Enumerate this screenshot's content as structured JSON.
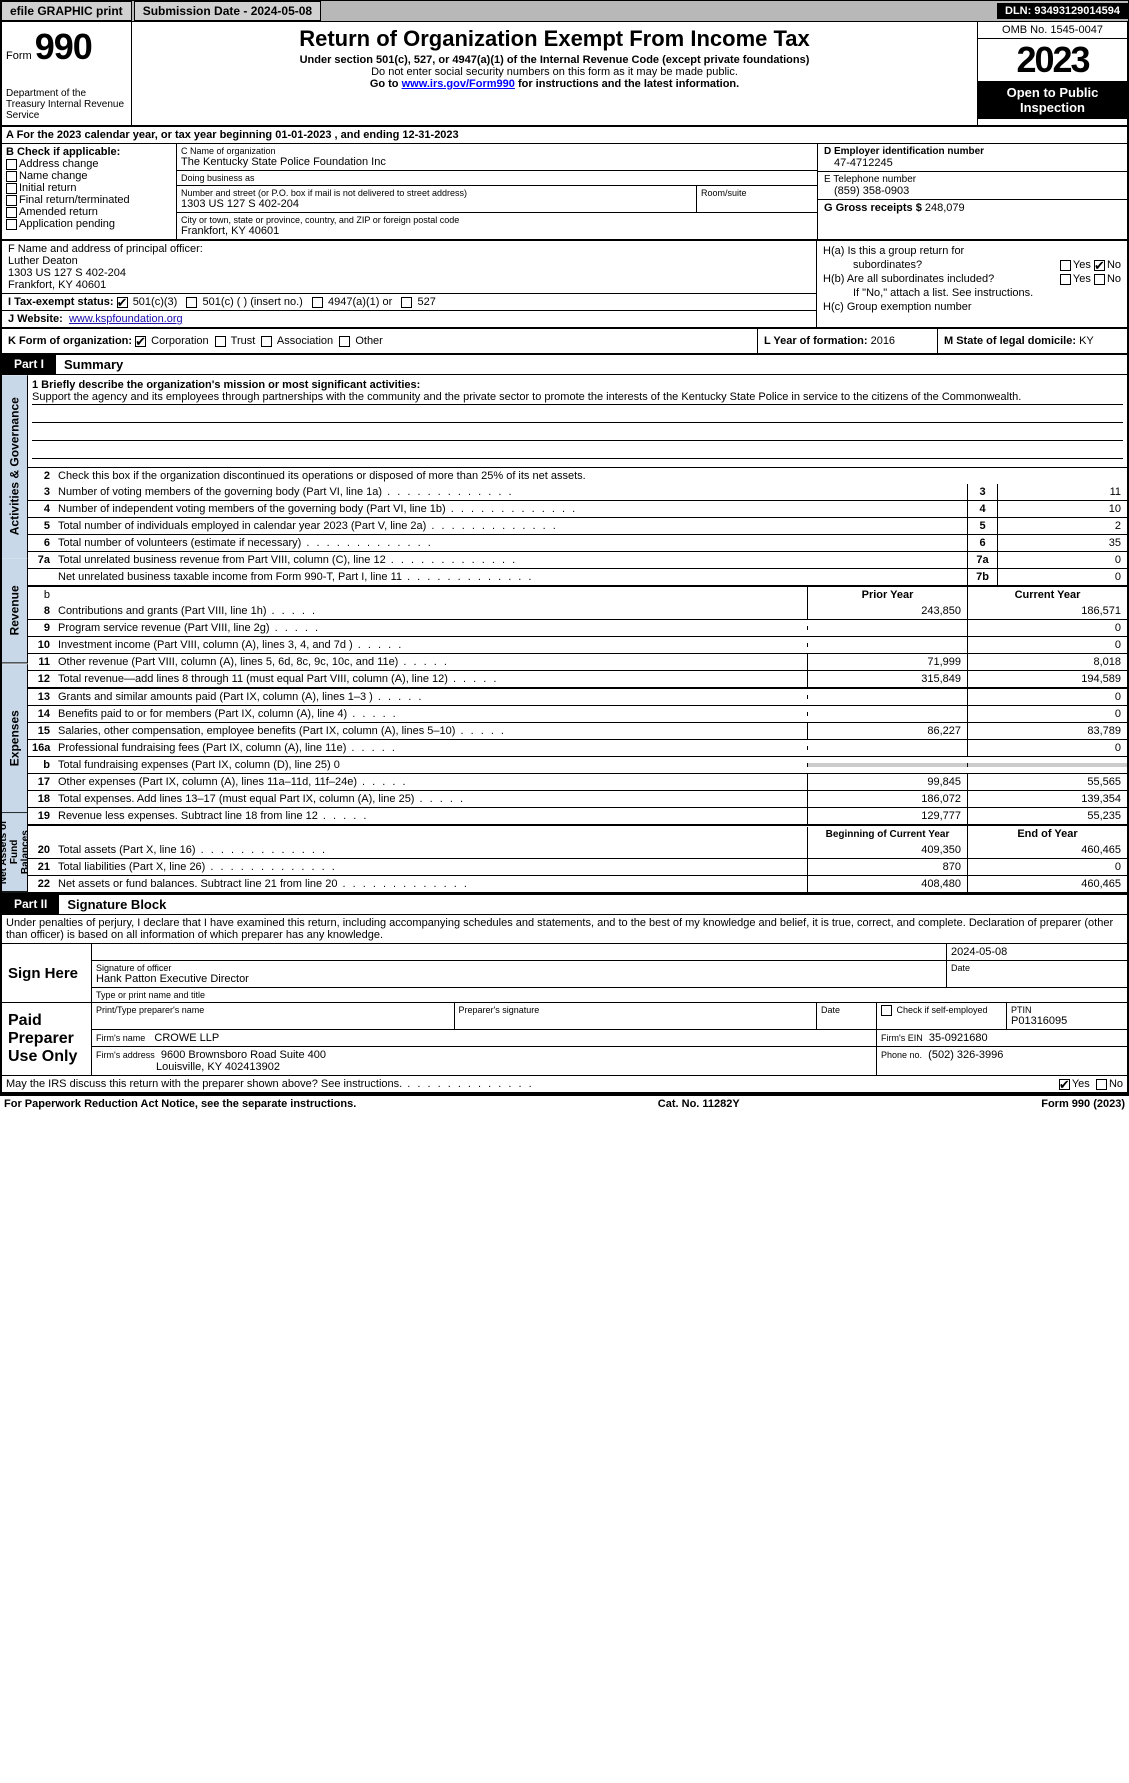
{
  "topbar": {
    "efile": "efile GRAPHIC print",
    "submission_label": "Submission Date - 2024-05-08",
    "dln": "DLN: 93493129014594"
  },
  "header": {
    "form_label": "Form",
    "form_number": "990",
    "title": "Return of Organization Exempt From Income Tax",
    "subtitle": "Under section 501(c), 527, or 4947(a)(1) of the Internal Revenue Code (except private foundations)",
    "note1": "Do not enter social security numbers on this form as it may be made public.",
    "note2_pre": "Go to ",
    "note2_link": "www.irs.gov/Form990",
    "note2_post": " for instructions and the latest information.",
    "dept": "Department of the Treasury\nInternal Revenue Service",
    "omb": "OMB No. 1545-0047",
    "year": "2023",
    "pubinspect": "Open to Public Inspection"
  },
  "row_a": {
    "text_pre": "A For the 2023 calendar year, or tax year beginning ",
    "begin": "01-01-2023",
    "mid": " , and ending ",
    "end": "12-31-2023"
  },
  "block_b": {
    "label": "B Check if applicable:",
    "items": [
      "Address change",
      "Name change",
      "Initial return",
      "Final return/terminated",
      "Amended return",
      "Application pending"
    ]
  },
  "block_c": {
    "name_label": "C Name of organization",
    "name": "The Kentucky State Police Foundation Inc",
    "dba_label": "Doing business as",
    "dba": "",
    "street_label": "Number and street (or P.O. box if mail is not delivered to street address)",
    "street": "1303 US 127 S 402-204",
    "room_label": "Room/suite",
    "room": "",
    "city_label": "City or town, state or province, country, and ZIP or foreign postal code",
    "city": "Frankfort, KY  40601"
  },
  "block_de": {
    "d_label": "D Employer identification number",
    "d_value": "47-4712245",
    "e_label": "E Telephone number",
    "e_value": "(859) 358-0903",
    "g_label": "G Gross receipts $",
    "g_value": "248,079"
  },
  "block_f": {
    "label": "F Name and address of principal officer:",
    "name": "Luther Deaton",
    "street": "1303 US 127 S 402-204",
    "city": "Frankfort, KY  40601"
  },
  "block_i": {
    "label": "I   Tax-exempt status:",
    "opts": [
      "501(c)(3)",
      "501(c) (  ) (insert no.)",
      "4947(a)(1) or",
      "527"
    ],
    "checked": 0
  },
  "block_j": {
    "label": "J   Website:",
    "value": "www.kspfoundation.org"
  },
  "block_h": {
    "a": "H(a)  Is this a group return for",
    "a2": "subordinates?",
    "b": "H(b)  Are all subordinates included?",
    "b_note": "If \"No,\" attach a list. See instructions.",
    "c": "H(c)  Group exemption number ",
    "yes": "Yes",
    "no": "No"
  },
  "row_k": {
    "label": "K Form of organization:",
    "opts": [
      "Corporation",
      "Trust",
      "Association",
      "Other"
    ],
    "checked": 0,
    "l_label": "L Year of formation:",
    "l_value": "2016",
    "m_label": "M State of legal domicile:",
    "m_value": "KY"
  },
  "parts": {
    "p1_tab": "Part I",
    "p1_title": "Summary",
    "p2_tab": "Part II",
    "p2_title": "Signature Block"
  },
  "summary": {
    "vtabs": [
      "Activities & Governance",
      "Revenue",
      "Expenses",
      "Net Assets or Fund Balances"
    ],
    "mission_label": "1   Briefly describe the organization's mission or most significant activities:",
    "mission_text": "Support the agency and its employees through partnerships with the community and the private sector to promote the interests of the Kentucky State Police in service to the citizens of the Commonwealth.",
    "line2": "Check this box      if the organization discontinued its operations or disposed of more than 25% of its net assets.",
    "gov": [
      {
        "n": "3",
        "d": "Number of voting members of the governing body (Part VI, line 1a)",
        "b": "3",
        "v": "11"
      },
      {
        "n": "4",
        "d": "Number of independent voting members of the governing body (Part VI, line 1b)",
        "b": "4",
        "v": "10"
      },
      {
        "n": "5",
        "d": "Total number of individuals employed in calendar year 2023 (Part V, line 2a)",
        "b": "5",
        "v": "2"
      },
      {
        "n": "6",
        "d": "Total number of volunteers (estimate if necessary)",
        "b": "6",
        "v": "35"
      },
      {
        "n": "7a",
        "d": "Total unrelated business revenue from Part VIII, column (C), line 12",
        "b": "7a",
        "v": "0"
      },
      {
        "n": "",
        "d": "Net unrelated business taxable income from Form 990-T, Part I, line 11",
        "b": "7b",
        "v": "0"
      }
    ],
    "col_hdr_prior": "Prior Year",
    "col_hdr_current": "Current Year",
    "rev": [
      {
        "n": "8",
        "d": "Contributions and grants (Part VIII, line 1h)",
        "p": "243,850",
        "c": "186,571"
      },
      {
        "n": "9",
        "d": "Program service revenue (Part VIII, line 2g)",
        "p": "",
        "c": "0"
      },
      {
        "n": "10",
        "d": "Investment income (Part VIII, column (A), lines 3, 4, and 7d )",
        "p": "",
        "c": "0"
      },
      {
        "n": "11",
        "d": "Other revenue (Part VIII, column (A), lines 5, 6d, 8c, 9c, 10c, and 11e)",
        "p": "71,999",
        "c": "8,018"
      },
      {
        "n": "12",
        "d": "Total revenue—add lines 8 through 11 (must equal Part VIII, column (A), line 12)",
        "p": "315,849",
        "c": "194,589"
      }
    ],
    "exp": [
      {
        "n": "13",
        "d": "Grants and similar amounts paid (Part IX, column (A), lines 1–3 )",
        "p": "",
        "c": "0"
      },
      {
        "n": "14",
        "d": "Benefits paid to or for members (Part IX, column (A), line 4)",
        "p": "",
        "c": "0"
      },
      {
        "n": "15",
        "d": "Salaries, other compensation, employee benefits (Part IX, column (A), lines 5–10)",
        "p": "86,227",
        "c": "83,789"
      },
      {
        "n": "16a",
        "d": "Professional fundraising fees (Part IX, column (A), line 11e)",
        "p": "",
        "c": "0"
      },
      {
        "n": "b",
        "d": "Total fundraising expenses (Part IX, column (D), line 25) 0",
        "grey": true
      },
      {
        "n": "17",
        "d": "Other expenses (Part IX, column (A), lines 11a–11d, 11f–24e)",
        "p": "99,845",
        "c": "55,565"
      },
      {
        "n": "18",
        "d": "Total expenses. Add lines 13–17 (must equal Part IX, column (A), line 25)",
        "p": "186,072",
        "c": "139,354"
      },
      {
        "n": "19",
        "d": "Revenue less expenses. Subtract line 18 from line 12",
        "p": "129,777",
        "c": "55,235"
      }
    ],
    "col_hdr_begin": "Beginning of Current Year",
    "col_hdr_end": "End of Year",
    "net": [
      {
        "n": "20",
        "d": "Total assets (Part X, line 16)",
        "p": "409,350",
        "c": "460,465"
      },
      {
        "n": "21",
        "d": "Total liabilities (Part X, line 26)",
        "p": "870",
        "c": "0"
      },
      {
        "n": "22",
        "d": "Net assets or fund balances. Subtract line 21 from line 20",
        "p": "408,480",
        "c": "460,465"
      }
    ]
  },
  "sig": {
    "decl": "Under penalties of perjury, I declare that I have examined this return, including accompanying schedules and statements, and to the best of my knowledge and belief, it is true, correct, and complete. Declaration of preparer (other than officer) is based on all information of which preparer has any knowledge.",
    "sign_here": "Sign Here",
    "sig_officer_lbl": "Signature of officer",
    "officer_name": "Hank Patton  Executive Director",
    "type_lbl": "Type or print name and title",
    "date_lbl": "Date",
    "date_val": "2024-05-08",
    "paid_lbl": "Paid Preparer Use Only",
    "prep_name_lbl": "Print/Type preparer's name",
    "prep_sig_lbl": "Preparer's signature",
    "check_lbl": "Check       if self-employed",
    "ptin_lbl": "PTIN",
    "ptin": "P01316095",
    "firm_name_lbl": "Firm's name",
    "firm_name": "CROWE LLP",
    "firm_ein_lbl": "Firm's EIN",
    "firm_ein": "35-0921680",
    "firm_addr_lbl": "Firm's address",
    "firm_addr1": "9600 Brownsboro Road Suite 400",
    "firm_addr2": "Louisville, KY  402413902",
    "phone_lbl": "Phone no.",
    "phone": "(502) 326-3996",
    "discuss": "May the IRS discuss this return with the preparer shown above? See instructions.",
    "yes": "Yes",
    "no": "No"
  },
  "footer": {
    "left": "For Paperwork Reduction Act Notice, see the separate instructions.",
    "mid": "Cat. No. 11282Y",
    "right": "Form 990 (2023)"
  },
  "colors": {
    "topbar_bg": "#b8b8b8",
    "vtab_bg": "#c8d8e8",
    "grey_bg": "#cccccc",
    "link": "#1a0dab"
  }
}
